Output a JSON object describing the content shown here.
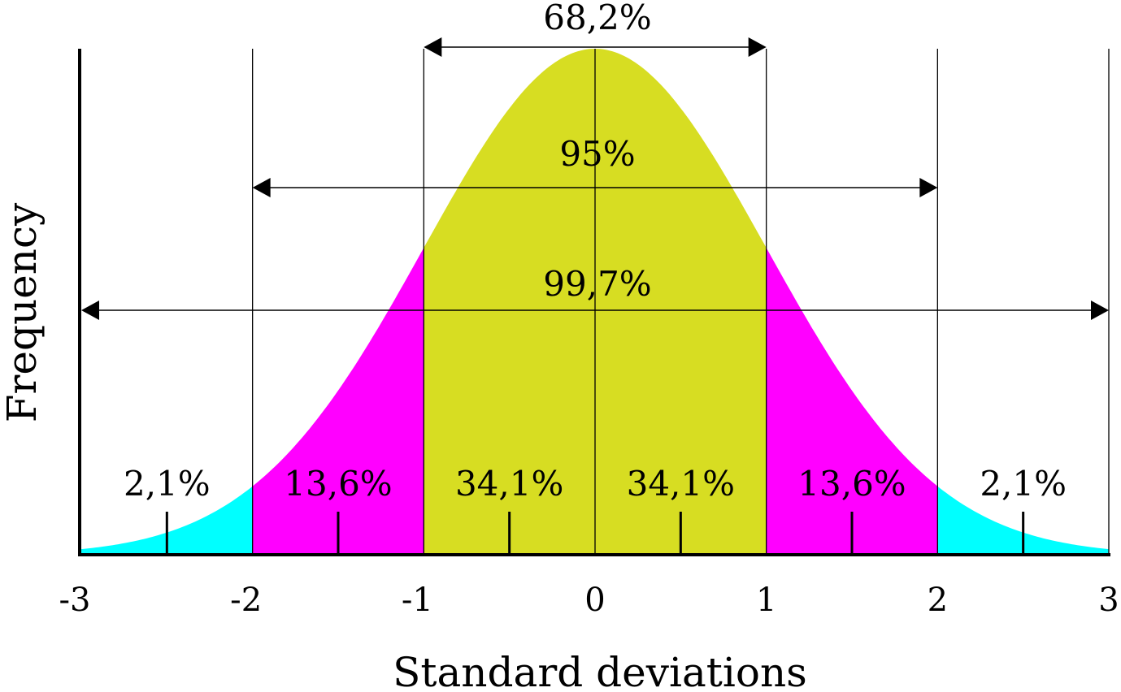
{
  "chart_data": {
    "type": "area",
    "title": "",
    "xlabel": "Standard deviations",
    "ylabel": "Frequency",
    "xlim": [
      -3,
      3
    ],
    "x_ticks": [
      "-3",
      "-2",
      "-1",
      "0",
      "1",
      "2",
      "3"
    ],
    "segments": [
      {
        "from": -3,
        "to": -2,
        "label": "2,1%",
        "color": "#00ffff"
      },
      {
        "from": -2,
        "to": -1,
        "label": "13,6%",
        "color": "#ff00ff"
      },
      {
        "from": -1,
        "to": 0,
        "label": "34,1%",
        "color": "#d7dd22"
      },
      {
        "from": 0,
        "to": 1,
        "label": "34,1%",
        "color": "#d7dd22"
      },
      {
        "from": 1,
        "to": 2,
        "label": "13,6%",
        "color": "#ff00ff"
      },
      {
        "from": 2,
        "to": 3,
        "label": "2,1%",
        "color": "#00ffff"
      }
    ],
    "ranges": [
      {
        "from": -1,
        "to": 1,
        "label": "68,2%"
      },
      {
        "from": -2,
        "to": 2,
        "label": "95%"
      },
      {
        "from": -3,
        "to": 3,
        "label": "99,7%"
      }
    ],
    "grid": true,
    "legend": "none"
  }
}
